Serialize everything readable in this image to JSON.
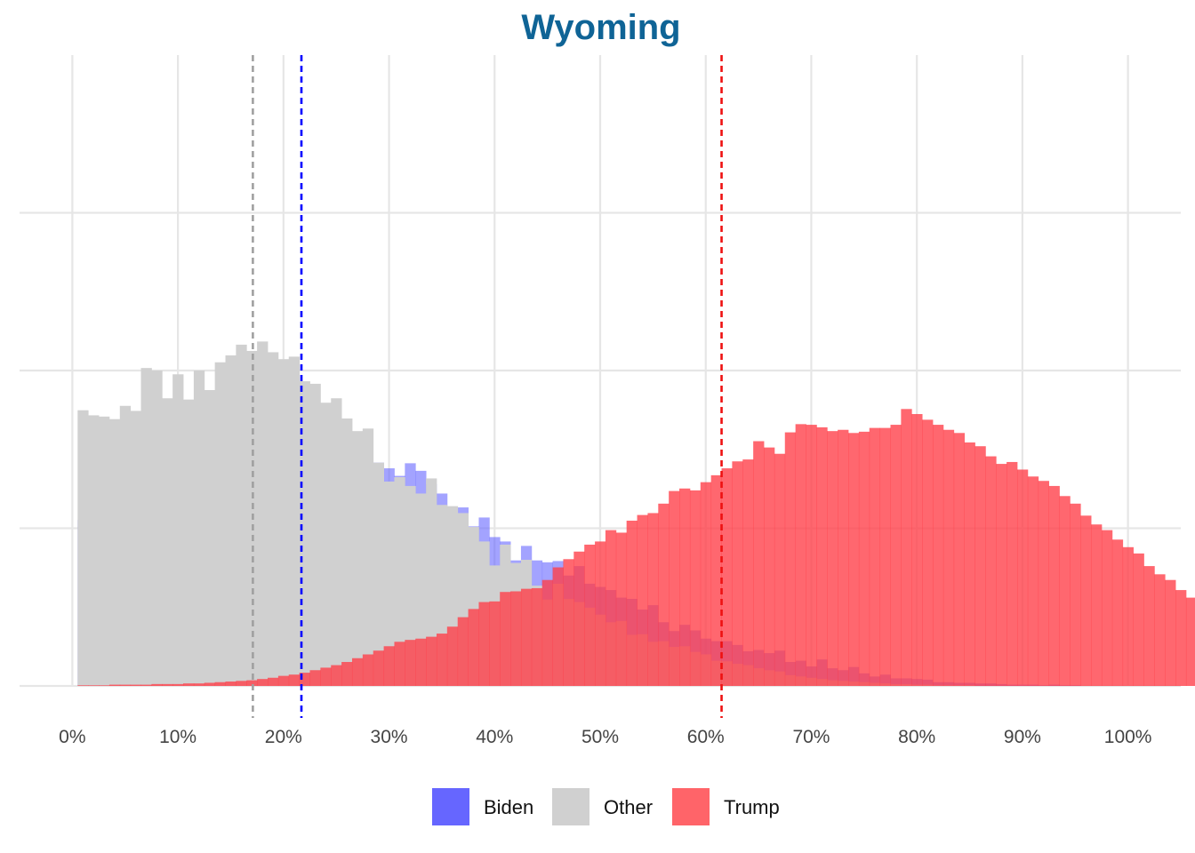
{
  "chart_data": {
    "type": "histogram",
    "title": "Wyoming",
    "xlabel": "",
    "ylabel": "",
    "xlim": [
      -0.05,
      1.05
    ],
    "ylim": [
      0,
      1
    ],
    "x_ticks": [
      0,
      0.1,
      0.2,
      0.3,
      0.4,
      0.5,
      0.6,
      0.7,
      0.8,
      0.9,
      1.0
    ],
    "x_tick_labels": [
      "0%",
      "10%",
      "20%",
      "30%",
      "40%",
      "50%",
      "60%",
      "70%",
      "80%",
      "90%",
      "100%"
    ],
    "y_tick_labels_shown": false,
    "grid": true,
    "bin_width": 0.01,
    "legend": {
      "position": "bottom"
    },
    "series": [
      {
        "name": "Biden",
        "color": "#6666ff",
        "opacity": 0.6,
        "mean": 0.217,
        "mean_line_color": "#0000ff",
        "bins": [
          {
            "start": 0.005,
            "values": [
              0.263,
              0.27,
              0.287,
              0.31,
              0.339,
              0.346,
              0.346,
              0.371,
              0.34,
              0.338,
              0.362,
              0.397,
              0.4,
              0.374,
              0.365,
              0.399,
              0.399,
              0.426,
              0.433,
              0.433,
              0.436,
              0.426,
              0.404,
              0.422,
              0.426,
              0.373,
              0.358,
              0.351,
              0.354,
              0.345,
              0.333,
              0.353,
              0.341,
              0.32,
              0.305,
              0.273,
              0.283,
              0.253,
              0.267,
              0.236,
              0.229,
              0.199,
              0.222,
              0.199,
              0.196,
              0.198,
              0.175,
              0.19,
              0.162,
              0.157,
              0.152,
              0.14,
              0.138,
              0.121,
              0.128,
              0.101,
              0.087,
              0.097,
              0.088,
              0.075,
              0.071,
              0.071,
              0.065,
              0.055,
              0.057,
              0.052,
              0.056,
              0.038,
              0.04,
              0.031,
              0.042,
              0.028,
              0.025,
              0.03,
              0.02,
              0.015,
              0.018,
              0.012,
              0.012,
              0.011,
              0.01,
              0.006,
              0.006,
              0.005,
              0.005,
              0.004,
              0.004,
              0.003,
              0.002,
              0.002,
              0.002,
              0.001,
              0.002,
              0.001,
              0.001
            ]
          }
        ]
      },
      {
        "name": "Other",
        "color": "#d0d0d0",
        "opacity": 1.0,
        "mean": 0.171,
        "mean_line_color": "#a0a0a0",
        "bins": [
          {
            "start": 0.005,
            "values": [
              0.437,
              0.429,
              0.427,
              0.423,
              0.444,
              0.436,
              0.504,
              0.5,
              0.456,
              0.494,
              0.454,
              0.5,
              0.469,
              0.513,
              0.524,
              0.541,
              0.531,
              0.546,
              0.529,
              0.518,
              0.522,
              0.483,
              0.479,
              0.449,
              0.456,
              0.424,
              0.404,
              0.408,
              0.354,
              0.324,
              0.331,
              0.317,
              0.305,
              0.329,
              0.287,
              0.285,
              0.274,
              0.252,
              0.229,
              0.191,
              0.224,
              0.195,
              0.2,
              0.159,
              0.137,
              0.162,
              0.138,
              0.133,
              0.124,
              0.113,
              0.101,
              0.103,
              0.081,
              0.082,
              0.07,
              0.071,
              0.062,
              0.063,
              0.054,
              0.05,
              0.04,
              0.039,
              0.035,
              0.033,
              0.028,
              0.025,
              0.023,
              0.017,
              0.015,
              0.013,
              0.011,
              0.009,
              0.008,
              0.007,
              0.006,
              0.005,
              0.004,
              0.003,
              0.003,
              0.002,
              0.002,
              0.001,
              0.001,
              0.001,
              0.001
            ]
          }
        ]
      },
      {
        "name": "Trump",
        "color": "#ff3c46",
        "opacity": 0.78,
        "mean": 0.615,
        "mean_line_color": "#ee1111",
        "bins": [
          {
            "start": 0.005,
            "values": [
              0.001,
              0.001,
              0.001,
              0.002,
              0.002,
              0.002,
              0.002,
              0.003,
              0.003,
              0.003,
              0.004,
              0.004,
              0.005,
              0.006,
              0.007,
              0.008,
              0.009,
              0.011,
              0.013,
              0.016,
              0.018,
              0.021,
              0.025,
              0.029,
              0.033,
              0.038,
              0.044,
              0.05,
              0.056,
              0.063,
              0.07,
              0.073,
              0.075,
              0.078,
              0.083,
              0.094,
              0.109,
              0.122,
              0.133,
              0.134,
              0.149,
              0.15,
              0.154,
              0.155,
              0.168,
              0.188,
              0.201,
              0.213,
              0.224,
              0.229,
              0.247,
              0.243,
              0.262,
              0.271,
              0.274,
              0.289,
              0.309,
              0.313,
              0.31,
              0.323,
              0.334,
              0.345,
              0.356,
              0.359,
              0.388,
              0.378,
              0.368,
              0.402,
              0.415,
              0.414,
              0.41,
              0.404,
              0.406,
              0.401,
              0.403,
              0.409,
              0.409,
              0.414,
              0.439,
              0.431,
              0.422,
              0.414,
              0.406,
              0.401,
              0.386,
              0.38,
              0.364,
              0.352,
              0.355,
              0.343,
              0.332,
              0.325,
              0.317,
              0.301,
              0.289,
              0.27,
              0.256,
              0.247,
              0.232,
              0.22,
              0.21,
              0.19,
              0.177,
              0.168,
              0.152,
              0.14,
              0.124,
              0.117,
              0.101,
              0.091,
              0.077,
              0.066,
              0.058,
              0.049,
              0.043,
              0.036,
              0.031,
              0.025,
              0.021,
              0.017,
              0.014
            ]
          }
        ]
      }
    ]
  }
}
